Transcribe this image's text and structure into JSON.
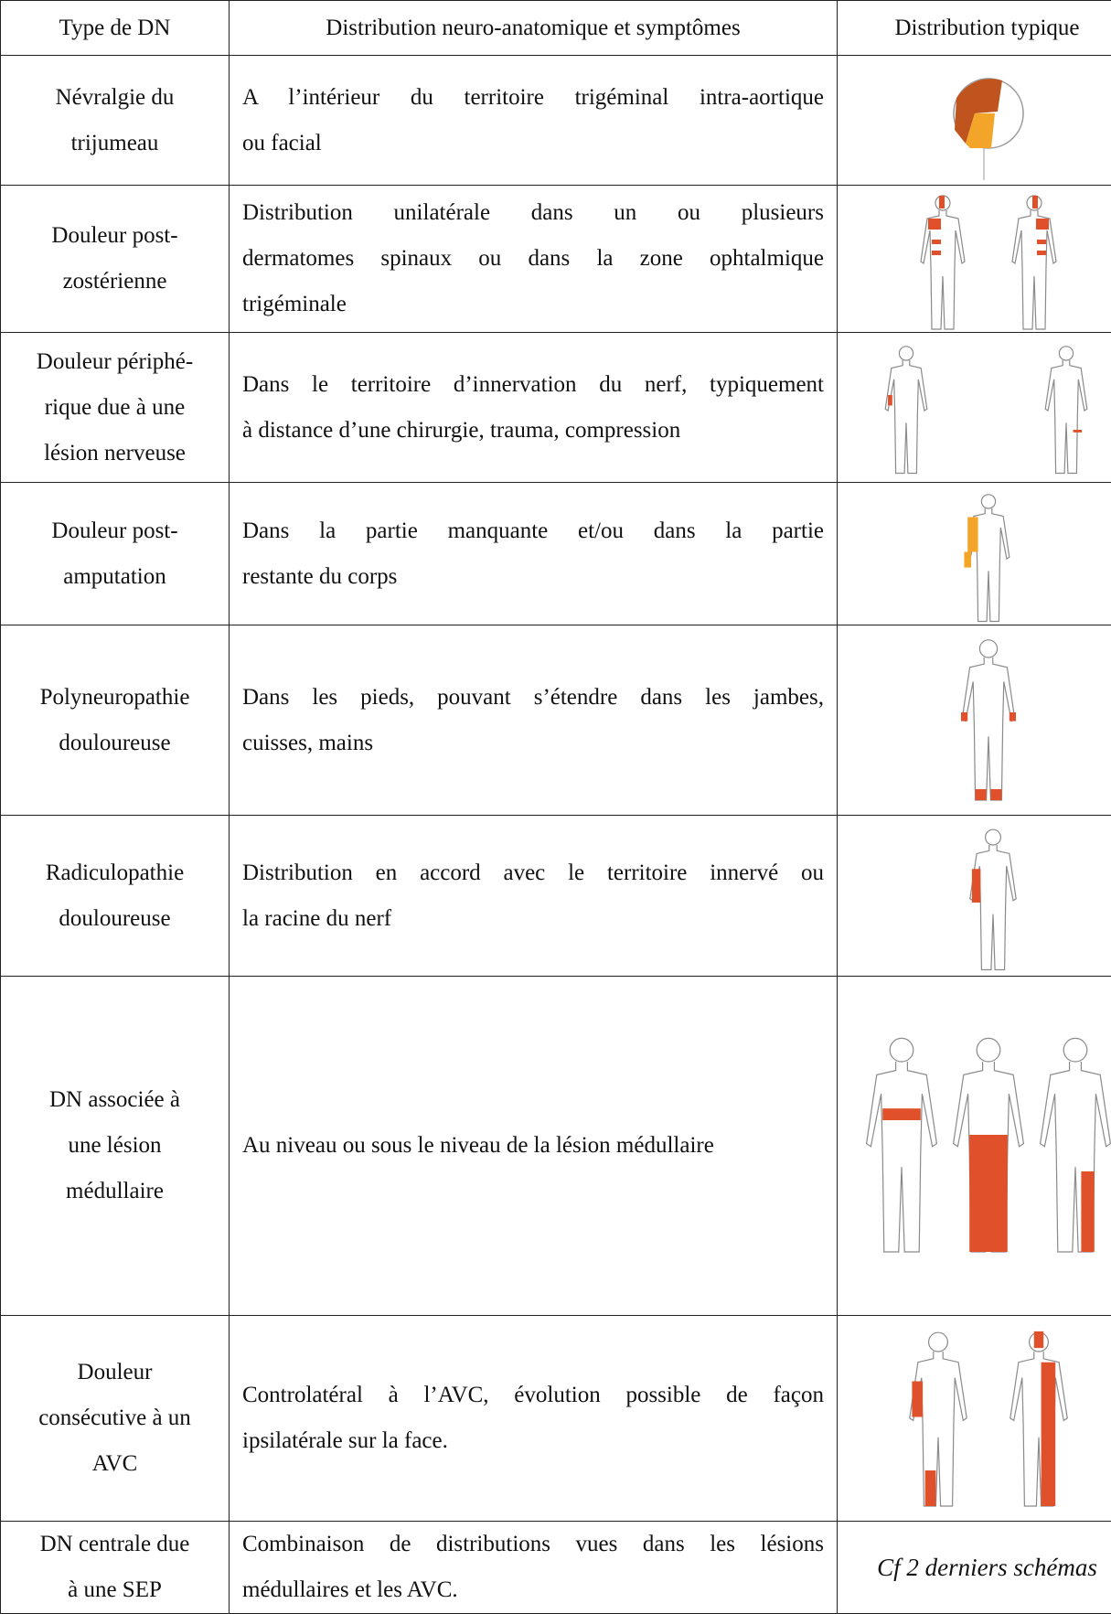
{
  "table": {
    "header": [
      "Type de DN",
      "Distribution neuro-anatomique et symptômes",
      "Distribution typique"
    ],
    "rows": [
      {
        "type": [
          "Névralgie du",
          "trijumeau"
        ],
        "description": [
          "A l’intérieur du territoire trigéminal intra-aortique",
          "ou facial"
        ]
      },
      {
        "type": [
          "Douleur post-",
          "zostérienne"
        ],
        "description": [
          "Distribution unilatérale dans un ou plusieurs",
          "dermatomes spinaux ou dans la zone ophtalmique",
          "trigéminale"
        ]
      },
      {
        "type": [
          "Douleur périphé-",
          "rique due à une",
          "lésion nerveuse"
        ],
        "description": [
          "Dans le territoire d’innervation du nerf, typiquement",
          "à distance d’une chirurgie, trauma, compression"
        ]
      },
      {
        "type": [
          "Douleur post-",
          "amputation"
        ],
        "description": [
          "Dans la partie manquante et/ou dans la partie",
          "restante du corps"
        ]
      },
      {
        "type": [
          "Polyneuropathie",
          "douloureuse"
        ],
        "description": [
          "Dans les pieds, pouvant s’étendre dans les jambes,",
          "cuisses, mains"
        ]
      },
      {
        "type": [
          "Radiculopathie",
          "douloureuse"
        ],
        "description": [
          "Distribution en accord avec le territoire innervé ou",
          "la racine du nerf"
        ]
      },
      {
        "type": [
          "DN associée à",
          "une lésion",
          "médullaire"
        ],
        "description": [
          "Au niveau ou sous le niveau de la lésion médullaire"
        ]
      },
      {
        "type": [
          "Douleur",
          "consécutive à un",
          "AVC"
        ],
        "description": [
          "Controlatéral à l’AVC, évolution possible de façon",
          "ipsilatérale sur la face."
        ]
      },
      {
        "type": [
          "DN centrale due",
          "à une SEP"
        ],
        "description": [
          "Combinaison de distributions vues dans les lésions",
          "médullaires et les AVC."
        ],
        "distribution": "Cf 2 derniers schémas"
      }
    ]
  }
}
